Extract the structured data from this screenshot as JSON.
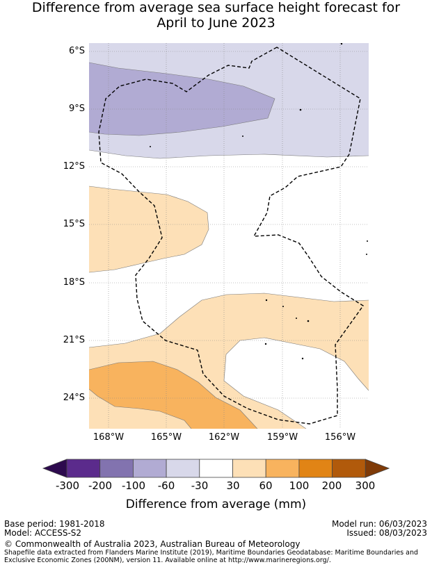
{
  "title": {
    "line1": "Difference from average sea surface height forecast for",
    "line2": "April to June 2023"
  },
  "map": {
    "latitude_labels": [
      "6°S",
      "9°S",
      "12°S",
      "15°S",
      "18°S",
      "21°S",
      "24°S"
    ],
    "longitude_labels": [
      "168°W",
      "165°W",
      "162°W",
      "159°W",
      "156°W"
    ],
    "colors": {
      "neg_100_60": "#b1abd3",
      "neg_60_30": "#d8d8ea",
      "pos_30_60": "#fde0b7",
      "pos_60_100": "#f8b35e",
      "eez_line": "#000000",
      "grid": "#888888"
    }
  },
  "colorbar": {
    "ticks": [
      "-300",
      "-200",
      "-100",
      "-60",
      "-30",
      "30",
      "60",
      "100",
      "200",
      "300"
    ],
    "colors": [
      "#2d0a4e",
      "#5b2b8c",
      "#8273af",
      "#b1abd3",
      "#d8d8ea",
      "#ffffff",
      "#fde0b7",
      "#f8b35e",
      "#e18415",
      "#b15a0b",
      "#7f3b08"
    ],
    "label": "Difference from average (mm)"
  },
  "footer": {
    "base_period": "Base period: 1981-2018",
    "model": "Model: ACCESS-S2",
    "model_run": "Model run: 06/03/2023",
    "issued": "Issued: 08/03/2023",
    "copyright": "© Commonwealth of Australia 2023, Australian Bureau of Meteorology",
    "shapefile": "Shapefile data extracted from Flanders Marine Institute (2019), Maritime Boundaries Geodatabase: Maritime Boundaries and Exclusive Economic Zones (200NM), version 11. Available online at http://www.marineregions.org/."
  }
}
